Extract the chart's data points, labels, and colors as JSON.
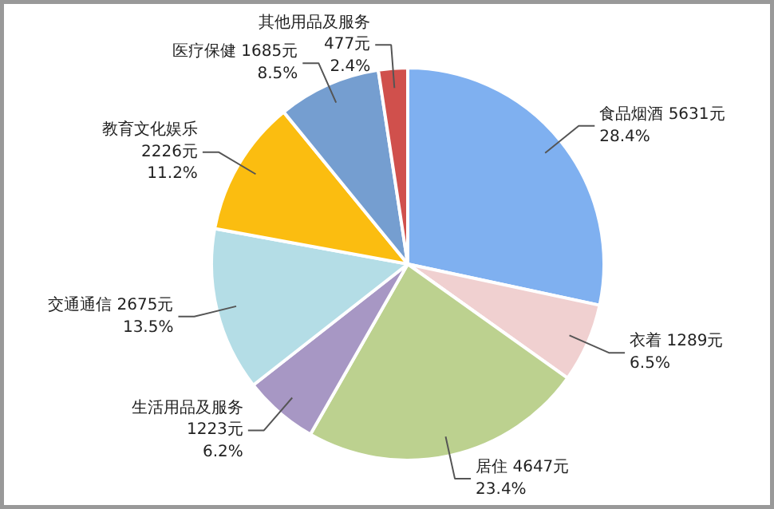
{
  "chart_data": {
    "type": "pie",
    "categories": [
      "食品烟酒",
      "衣着",
      "居住",
      "生活用品及服务",
      "交通通信",
      "教育文化娱乐",
      "医疗保健",
      "其他用品及服务"
    ],
    "values": [
      5631,
      1289,
      4647,
      1223,
      2675,
      2226,
      1685,
      477
    ],
    "colors": [
      "#7fb0f0",
      "#f0d0d0",
      "#bcd18f",
      "#a797c4",
      "#b4dde6",
      "#fbbd10",
      "#759ed0",
      "#d0504c"
    ],
    "value_labels": [
      " 5631元\n28.4%",
      " 1289元\n6.5%",
      " 4647元\n23.4%",
      "\n1223元\n6.2%",
      " 2675元\n13.5%",
      "\n2226元\n11.2%",
      " 1685元\n8.5%",
      "\n477元\n2.4%"
    ]
  }
}
